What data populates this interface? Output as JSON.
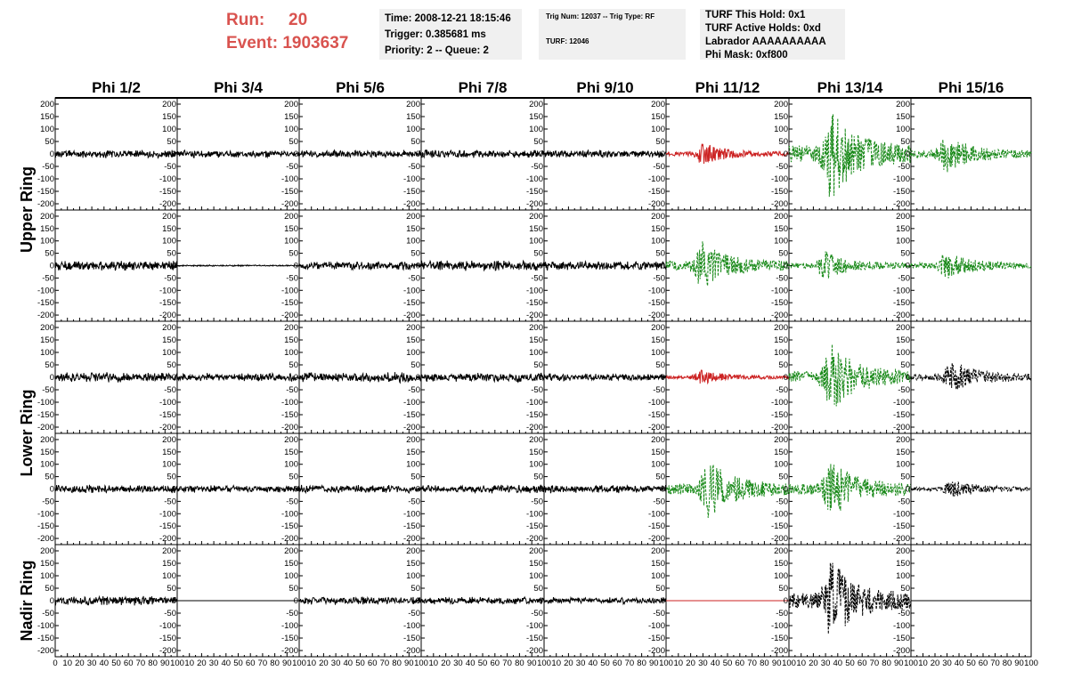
{
  "header": {
    "run_label": "Run:",
    "run_value": "20",
    "event_label": "Event:",
    "event_value": "1903637"
  },
  "info_box_1": {
    "line1": "Time: 2008-12-21 18:15:46",
    "line2": "Trigger: 0.385681 ms",
    "line3": "Priority: 2 -- Queue: 2"
  },
  "info_box_2": {
    "line1": "Trig Num: 12037 -- Trig Type: RF",
    "line2": "TURF: 12046"
  },
  "info_box_3": {
    "line1": "TURF This Hold: 0x1",
    "line2": "TURF Active Holds: 0xd",
    "line3": "Labrador AAAAAAAAAA",
    "line4": "Phi Mask: 0xf800"
  },
  "chart_data": {
    "type": "line",
    "columns": [
      "Phi 1/2",
      "Phi 3/4",
      "Phi 5/6",
      "Phi 7/8",
      "Phi 9/10",
      "Phi 11/12",
      "Phi 13/14",
      "Phi 15/16"
    ],
    "rows": [
      "Upper Ring",
      "Lower Ring",
      "Nadir Ring"
    ],
    "row_label_spans": [
      {
        "label": "Upper Ring",
        "panels": [
          0,
          1
        ]
      },
      {
        "label": "Lower Ring",
        "panels": [
          2,
          3
        ]
      },
      {
        "label": "Nadir Ring",
        "panels": [
          4
        ]
      }
    ],
    "ylim": [
      -225,
      225
    ],
    "xlim": [
      0,
      100
    ],
    "y_ticks": [
      -200,
      -150,
      -100,
      -50,
      0,
      50,
      100,
      150,
      200
    ],
    "x_ticks": [
      0,
      10,
      20,
      30,
      40,
      50,
      60,
      70,
      80,
      90,
      100
    ],
    "colors": {
      "normal": "#000000",
      "red": "#cc2222",
      "green": "#1a8a1a"
    },
    "panels": [
      [
        "n:18",
        "n:16",
        "n:16",
        "n:18",
        "n:16",
        "r:44:30",
        "g:190:35",
        "g:80:30"
      ],
      [
        "n:22",
        "f:3",
        "n:18",
        "n:22",
        "n:20",
        "g:100:30",
        "g:60:30",
        "g:60:30"
      ],
      [
        "n:22",
        "n:18",
        "n:22",
        "n:20",
        "n:16",
        "r:30:30",
        "g:140:35",
        "k:70:35"
      ],
      [
        "n:18",
        "n:16",
        "n:18",
        "n:18",
        "n:18",
        "g:120:35",
        "g:120:35",
        "k:40:35"
      ],
      [
        "n:20",
        "z",
        "n:18",
        "n:16",
        "n:14",
        "rz",
        "k:170:35",
        "kz"
      ]
    ]
  }
}
